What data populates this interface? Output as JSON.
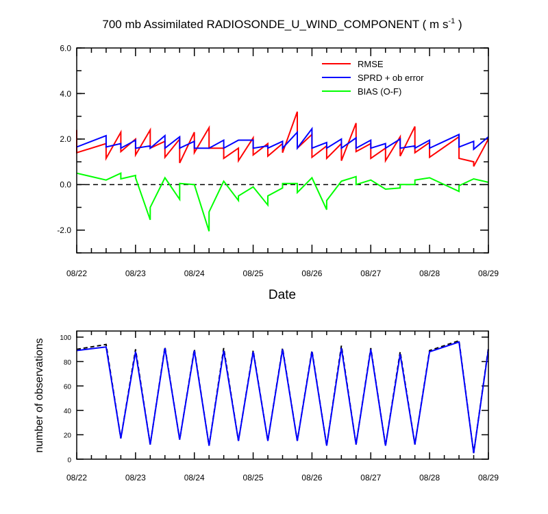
{
  "chart_data": [
    {
      "type": "line",
      "title": "700 mb Assimilated RADIOSONDE_U_WIND_COMPONENT ( m s",
      "title_superscript": "-1",
      "title_suffix": " )",
      "xlabel": "Date",
      "ylabel": "",
      "x_tick_labels": [
        "08/22",
        "08/23",
        "08/24",
        "08/25",
        "08/26",
        "08/27",
        "08/28",
        "08/29"
      ],
      "xlim": [
        0,
        7
      ],
      "ylim": [
        -3,
        6
      ],
      "y_ticks": [
        -2,
        0,
        2,
        4,
        6
      ],
      "y_tick_labels": [
        "-2.0",
        "0.0",
        "2.0",
        "4.0",
        "6.0"
      ],
      "zero_line": "dashed",
      "legend_placement": "top-right",
      "series": [
        {
          "name": "RMSE",
          "color": "#ff0000",
          "points": [
            [
              0,
              2.4
            ],
            [
              0,
              1.4
            ],
            [
              0.5,
              1.8
            ],
            [
              0.5,
              1.15
            ],
            [
              0.75,
              2.3
            ],
            [
              0.75,
              1.45
            ],
            [
              1,
              2.0
            ],
            [
              1,
              1.3
            ],
            [
              1.25,
              2.4
            ],
            [
              1.25,
              1.6
            ],
            [
              1.5,
              1.9
            ],
            [
              1.5,
              1.2
            ],
            [
              1.75,
              2.0
            ],
            [
              1.75,
              0.95
            ],
            [
              2,
              2.3
            ],
            [
              2,
              1.4
            ],
            [
              2.25,
              2.5
            ],
            [
              2.25,
              1.6
            ],
            [
              2.5,
              1.6
            ],
            [
              2.5,
              1.15
            ],
            [
              2.75,
              1.6
            ],
            [
              2.75,
              1.05
            ],
            [
              3,
              2.05
            ],
            [
              3,
              1.3
            ],
            [
              3.25,
              1.8
            ],
            [
              3.25,
              1.25
            ],
            [
              3.5,
              1.8
            ],
            [
              3.5,
              1.4
            ],
            [
              3.75,
              3.2
            ],
            [
              3.75,
              1.6
            ],
            [
              4,
              2.2
            ],
            [
              4,
              1.2
            ],
            [
              4.25,
              1.7
            ],
            [
              4.25,
              1.15
            ],
            [
              4.5,
              1.8
            ],
            [
              4.5,
              1.05
            ],
            [
              4.75,
              2.7
            ],
            [
              4.75,
              1.45
            ],
            [
              5,
              1.8
            ],
            [
              5,
              1.15
            ],
            [
              5.25,
              1.6
            ],
            [
              5.25,
              1.05
            ],
            [
              5.5,
              2.1
            ],
            [
              5.5,
              1.25
            ],
            [
              5.75,
              2.55
            ],
            [
              5.75,
              1.4
            ],
            [
              6,
              1.85
            ],
            [
              6,
              1.2
            ],
            [
              6.5,
              2.1
            ],
            [
              6.5,
              1.15
            ],
            [
              6.75,
              1.0
            ],
            [
              6.75,
              0.8
            ],
            [
              7,
              2.0
            ]
          ]
        },
        {
          "name": "SPRD + ob error",
          "color": "#0000ff",
          "points": [
            [
              0,
              1.65
            ],
            [
              0.5,
              2.15
            ],
            [
              0.5,
              1.65
            ],
            [
              0.75,
              1.8
            ],
            [
              0.75,
              1.6
            ],
            [
              1,
              1.95
            ],
            [
              1,
              1.6
            ],
            [
              1.25,
              1.7
            ],
            [
              1.25,
              1.6
            ],
            [
              1.5,
              2.15
            ],
            [
              1.5,
              1.6
            ],
            [
              1.75,
              2.1
            ],
            [
              1.75,
              1.6
            ],
            [
              2,
              1.9
            ],
            [
              2,
              1.6
            ],
            [
              2.25,
              1.6
            ],
            [
              2.5,
              1.95
            ],
            [
              2.5,
              1.6
            ],
            [
              2.75,
              1.95
            ],
            [
              3,
              1.95
            ],
            [
              3,
              1.6
            ],
            [
              3.25,
              1.7
            ],
            [
              3.25,
              1.6
            ],
            [
              3.5,
              1.9
            ],
            [
              3.5,
              1.6
            ],
            [
              3.75,
              2.3
            ],
            [
              3.75,
              1.6
            ],
            [
              4,
              2.45
            ],
            [
              4,
              1.6
            ],
            [
              4.25,
              1.85
            ],
            [
              4.25,
              1.6
            ],
            [
              4.5,
              2.0
            ],
            [
              4.5,
              1.6
            ],
            [
              4.75,
              2.05
            ],
            [
              4.75,
              1.6
            ],
            [
              5,
              1.95
            ],
            [
              5,
              1.6
            ],
            [
              5.25,
              1.8
            ],
            [
              5.25,
              1.6
            ],
            [
              5.5,
              2.0
            ],
            [
              5.5,
              1.6
            ],
            [
              5.75,
              1.7
            ],
            [
              5.75,
              1.6
            ],
            [
              6,
              1.95
            ],
            [
              6,
              1.6
            ],
            [
              6.5,
              2.2
            ],
            [
              6.5,
              1.65
            ],
            [
              6.75,
              1.9
            ],
            [
              6.75,
              1.55
            ],
            [
              7,
              2.1
            ]
          ]
        },
        {
          "name": "BIAS (O-F)",
          "color": "#00ff00",
          "points": [
            [
              0,
              0.5
            ],
            [
              0.5,
              0.2
            ],
            [
              0.75,
              0.5
            ],
            [
              0.75,
              0.25
            ],
            [
              1,
              0.4
            ],
            [
              1,
              0.3
            ],
            [
              1.25,
              -1.55
            ],
            [
              1.25,
              -1.0
            ],
            [
              1.5,
              0.3
            ],
            [
              1.75,
              -0.65
            ],
            [
              1.75,
              0.05
            ],
            [
              2,
              0.0
            ],
            [
              2.25,
              -2.05
            ],
            [
              2.25,
              -1.2
            ],
            [
              2.5,
              0.15
            ],
            [
              2.75,
              -0.7
            ],
            [
              2.75,
              -0.5
            ],
            [
              3,
              -0.1
            ],
            [
              3.25,
              -0.9
            ],
            [
              3.25,
              -0.5
            ],
            [
              3.5,
              -0.15
            ],
            [
              3.5,
              0.05
            ],
            [
              3.75,
              0.05
            ],
            [
              3.75,
              -0.35
            ],
            [
              4,
              0.3
            ],
            [
              4.25,
              -1.1
            ],
            [
              4.25,
              -0.7
            ],
            [
              4.5,
              0.15
            ],
            [
              4.75,
              0.35
            ],
            [
              4.75,
              0.0
            ],
            [
              5,
              0.2
            ],
            [
              5.25,
              -0.2
            ],
            [
              5.5,
              -0.15
            ],
            [
              5.5,
              0.0
            ],
            [
              5.75,
              0.0
            ],
            [
              5.75,
              0.2
            ],
            [
              6,
              0.3
            ],
            [
              6.5,
              -0.3
            ],
            [
              6.5,
              -0.05
            ],
            [
              6.75,
              0.25
            ],
            [
              7,
              0.1
            ]
          ]
        }
      ]
    },
    {
      "type": "line",
      "title": "",
      "xlabel": "",
      "ylabel": "number of observations",
      "x_tick_labels": [
        "08/22",
        "08/23",
        "08/24",
        "08/25",
        "08/26",
        "08/27",
        "08/28",
        "08/29"
      ],
      "xlim": [
        0,
        7
      ],
      "ylim": [
        0,
        105
      ],
      "y_ticks": [
        0,
        20,
        40,
        60,
        80,
        100
      ],
      "y_tick_labels": [
        "0",
        "20",
        "40",
        "60",
        "80",
        "100"
      ],
      "series": [
        {
          "color": "#000000",
          "style": "dashed",
          "points": [
            [
              0,
              90
            ],
            [
              0.5,
              94
            ],
            [
              0.75,
              17
            ],
            [
              1,
              90
            ],
            [
              1.25,
              12
            ],
            [
              1.5,
              92
            ],
            [
              1.75,
              16
            ],
            [
              2,
              90
            ],
            [
              2.25,
              11
            ],
            [
              2.5,
              91
            ],
            [
              2.75,
              15
            ],
            [
              3,
              89
            ],
            [
              3.25,
              15
            ],
            [
              3.5,
              91
            ],
            [
              3.75,
              15
            ],
            [
              4,
              89
            ],
            [
              4.25,
              11
            ],
            [
              4.5,
              93
            ],
            [
              4.75,
              12
            ],
            [
              5,
              91
            ],
            [
              5.25,
              11
            ],
            [
              5.5,
              88
            ],
            [
              5.75,
              12
            ],
            [
              6,
              89
            ],
            [
              6.5,
              97
            ],
            [
              6.75,
              5
            ],
            [
              7,
              91
            ]
          ]
        },
        {
          "color": "#0000ff",
          "style": "solid",
          "points": [
            [
              0,
              89
            ],
            [
              0.5,
              92
            ],
            [
              0.75,
              17
            ],
            [
              1,
              88
            ],
            [
              1.25,
              12
            ],
            [
              1.5,
              91
            ],
            [
              1.75,
              16
            ],
            [
              2,
              89
            ],
            [
              2.25,
              11
            ],
            [
              2.5,
              89
            ],
            [
              2.75,
              15
            ],
            [
              3,
              88
            ],
            [
              3.25,
              15
            ],
            [
              3.5,
              90
            ],
            [
              3.75,
              15
            ],
            [
              4,
              88
            ],
            [
              4.25,
              11
            ],
            [
              4.5,
              91
            ],
            [
              4.75,
              12
            ],
            [
              5,
              90
            ],
            [
              5.25,
              11
            ],
            [
              5.5,
              86
            ],
            [
              5.75,
              12
            ],
            [
              6,
              88
            ],
            [
              6.5,
              96
            ],
            [
              6.75,
              5
            ],
            [
              7,
              90
            ]
          ]
        }
      ]
    }
  ]
}
